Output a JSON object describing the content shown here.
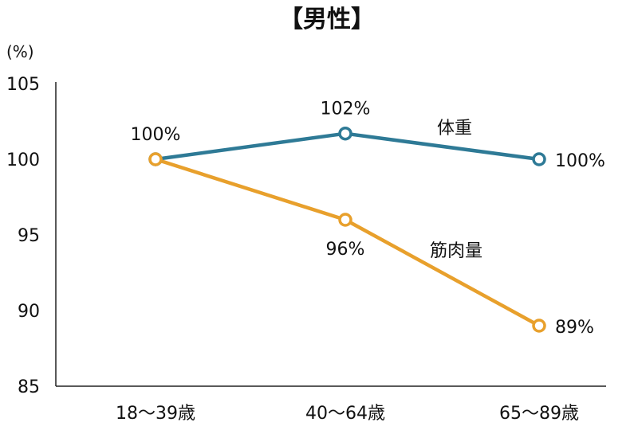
{
  "chart_data": {
    "type": "line",
    "title": "【男性】",
    "y_unit": "(%)",
    "categories": [
      "18〜39歳",
      "40〜64歳",
      "65〜89歳"
    ],
    "ylim": [
      85,
      105
    ],
    "yticks": [
      85,
      90,
      95,
      100,
      105
    ],
    "grid": false,
    "series": [
      {
        "name": "体重",
        "values": [
          100,
          101.7,
          100
        ],
        "data_labels": [
          "",
          "102%",
          "100%"
        ],
        "color": "#2e7a96"
      },
      {
        "name": "筋肉量",
        "values": [
          100,
          96,
          89
        ],
        "data_labels": [
          "100%",
          "96%",
          "89%"
        ],
        "color": "#e8a02c"
      }
    ]
  }
}
